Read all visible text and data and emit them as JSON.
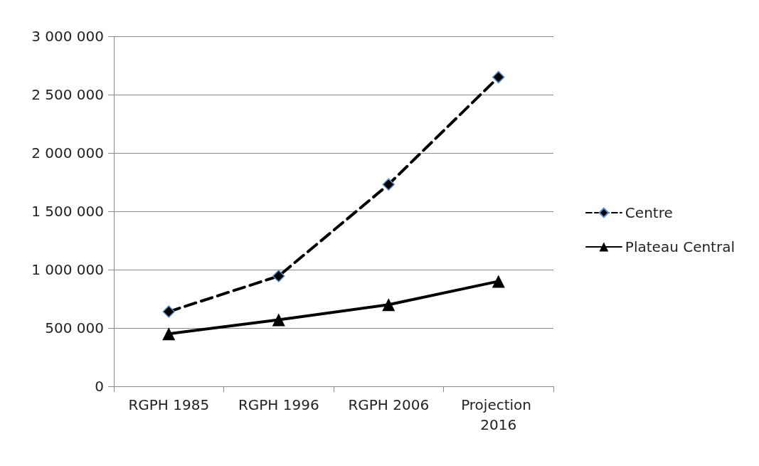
{
  "chart_data": {
    "type": "line",
    "categories": [
      "RGPH 1985",
      "RGPH 1996",
      "RGPH 2006",
      "Projection 2016"
    ],
    "series": [
      {
        "name": "Centre",
        "color": "#000000",
        "values": [
          640000,
          945000,
          1730000,
          2650000
        ],
        "marker": "diamond",
        "line_style": "dashed"
      },
      {
        "name": "Plateau Central",
        "color": "#000000",
        "values": [
          450000,
          570000,
          700000,
          900000
        ],
        "marker": "triangle",
        "line_style": "solid"
      }
    ],
    "ylim": [
      0,
      3000000
    ],
    "yticks": [
      {
        "value": 0,
        "label": "0"
      },
      {
        "value": 500000,
        "label": "500 000"
      },
      {
        "value": 1000000,
        "label": "1 000 000"
      },
      {
        "value": 1500000,
        "label": "1 500 000"
      },
      {
        "value": 2000000,
        "label": "2 000 000"
      },
      {
        "value": 2500000,
        "label": "2 500 000"
      },
      {
        "value": 3000000,
        "label": "3 000 000"
      }
    ],
    "grid": "y",
    "legend": "right"
  }
}
